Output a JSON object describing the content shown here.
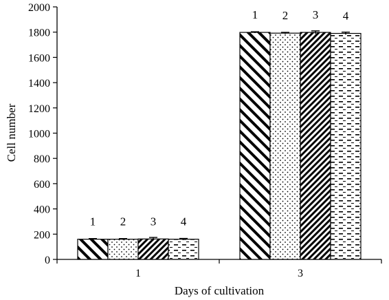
{
  "chart_data": {
    "type": "bar",
    "xlabel": "Days of cultivation",
    "ylabel": "Cell number",
    "ylim": [
      0,
      2000
    ],
    "y_ticks": [
      0,
      200,
      400,
      600,
      800,
      1000,
      1200,
      1400,
      1600,
      1800,
      2000
    ],
    "categories": [
      "1",
      "3"
    ],
    "series": [
      {
        "name": "1",
        "values": [
          160,
          1798
        ],
        "errors": [
          5,
          5
        ],
        "pattern": "back-diagonal-wide"
      },
      {
        "name": "2",
        "values": [
          160,
          1792
        ],
        "errors": [
          5,
          6
        ],
        "pattern": "dots"
      },
      {
        "name": "3",
        "values": [
          162,
          1798
        ],
        "errors": [
          12,
          12
        ],
        "pattern": "forward-diagonal-dense"
      },
      {
        "name": "4",
        "values": [
          160,
          1790
        ],
        "errors": [
          6,
          10
        ],
        "pattern": "dashes"
      }
    ],
    "grid": false,
    "legend": "none",
    "colors": {
      "bar_fill": "#ffffff",
      "ink": "#000000"
    }
  }
}
